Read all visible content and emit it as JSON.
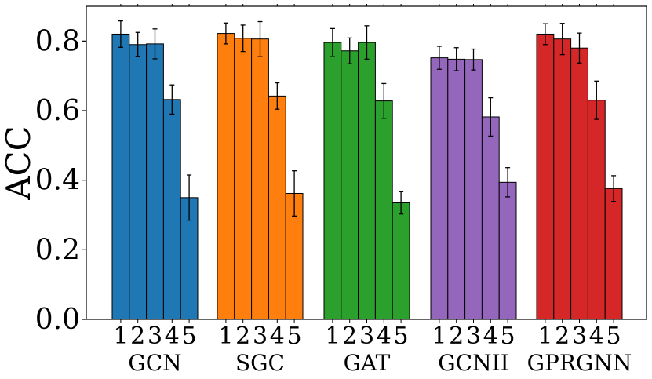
{
  "chart_data": {
    "type": "bar",
    "ylabel": "ACC",
    "ylim": [
      0,
      0.9
    ],
    "yticks": [
      "0.0",
      "0.2",
      "0.4",
      "0.6",
      "0.8"
    ],
    "grid": false,
    "legend": "none",
    "groups": [
      {
        "name": "GCN",
        "color": "#1f77b4",
        "categories": [
          "1",
          "2",
          "3",
          "4",
          "5"
        ],
        "values": [
          0.82,
          0.79,
          0.792,
          0.632,
          0.35
        ],
        "errors": [
          0.038,
          0.035,
          0.043,
          0.042,
          0.065
        ]
      },
      {
        "name": "SGC",
        "color": "#ff7f0e",
        "categories": [
          "1",
          "2",
          "3",
          "4",
          "5"
        ],
        "values": [
          0.822,
          0.808,
          0.806,
          0.642,
          0.362
        ],
        "errors": [
          0.03,
          0.038,
          0.05,
          0.038,
          0.065
        ]
      },
      {
        "name": "GAT",
        "color": "#2ca02c",
        "categories": [
          "1",
          "2",
          "3",
          "4",
          "5"
        ],
        "values": [
          0.796,
          0.772,
          0.796,
          0.628,
          0.335
        ],
        "errors": [
          0.04,
          0.037,
          0.048,
          0.05,
          0.032
        ]
      },
      {
        "name": "GCNII",
        "color": "#9467bd",
        "categories": [
          "1",
          "2",
          "3",
          "4",
          "5"
        ],
        "values": [
          0.752,
          0.748,
          0.747,
          0.582,
          0.394
        ],
        "errors": [
          0.033,
          0.033,
          0.03,
          0.055,
          0.042
        ]
      },
      {
        "name": "GPRGNN",
        "color": "#d62728",
        "categories": [
          "1",
          "2",
          "3",
          "4",
          "5"
        ],
        "values": [
          0.82,
          0.806,
          0.78,
          0.63,
          0.376
        ],
        "errors": [
          0.03,
          0.045,
          0.043,
          0.055,
          0.037
        ]
      }
    ]
  }
}
